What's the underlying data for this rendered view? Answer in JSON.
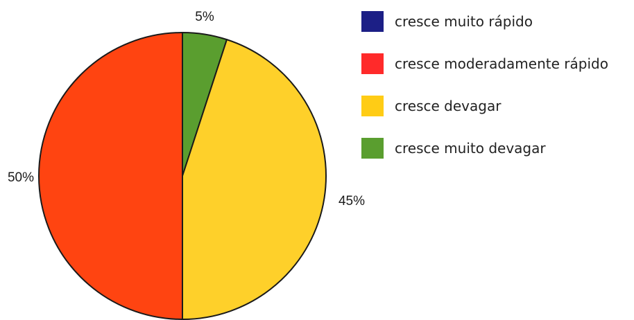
{
  "chart_data": {
    "type": "pie",
    "title": "",
    "categories": [
      "cresce muito rápido",
      "cresce moderadamente rápido",
      "cresce devagar",
      "cresce muito devagar"
    ],
    "values": [
      0,
      50,
      45,
      5
    ],
    "value_labels": [
      "",
      "50%",
      "45%",
      "5%"
    ],
    "colors": [
      "#1c1f86",
      "#ff2a2a",
      "#ffcc15",
      "#5a9e2f"
    ],
    "slice_colors": [
      "#1c1f86",
      "#ff4411",
      "#fed02a",
      "#5a9e2f"
    ],
    "slice_order_clockwise_from_top": [
      "cresce muito devagar",
      "cresce devagar",
      "cresce moderadamente rápido"
    ],
    "legend_position": "right"
  }
}
